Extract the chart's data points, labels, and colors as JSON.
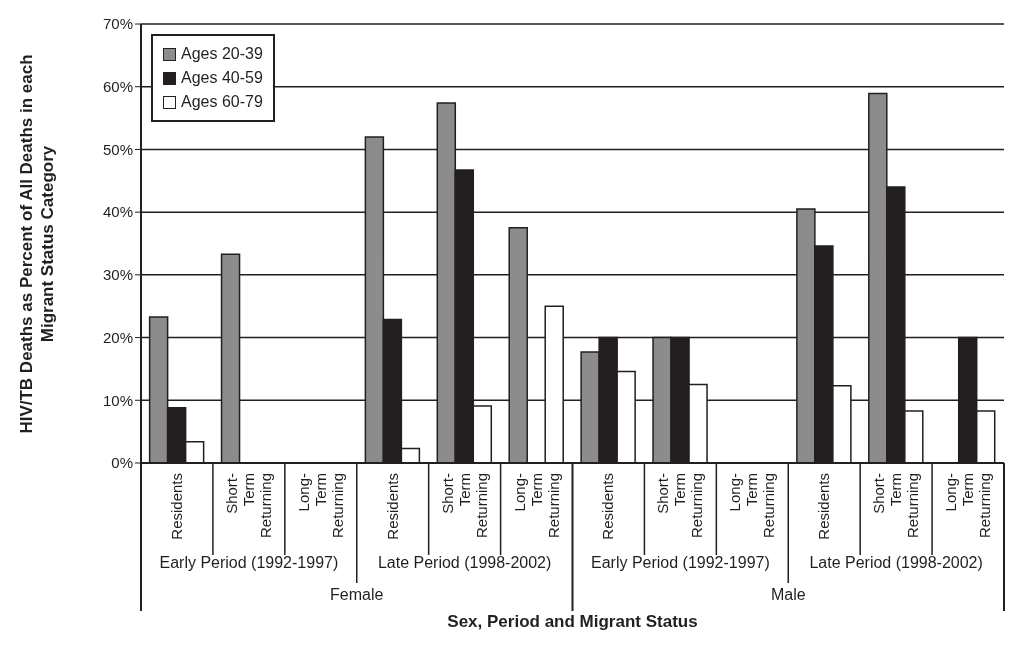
{
  "chart_data": {
    "type": "bar",
    "xlabel": "Sex, Period and Migrant Status",
    "ylabel": "HIV/TB Deaths as Percent of All Deaths in each Migrant Status Category",
    "categories": [
      "Residents",
      "Short-Term Returning",
      "Long-Term Returning",
      "Residents",
      "Short-Term Returning",
      "Long-Term Returning",
      "Residents",
      "Short-Term Returning",
      "Long-Term Returning",
      "Residents",
      "Short-Term Returning",
      "Long-Term Returning"
    ],
    "series": [
      {
        "name": "Ages 20-39",
        "color": "#8c8c8c",
        "values": [
          23.3,
          33.3,
          0,
          52.0,
          57.4,
          37.5,
          17.7,
          20,
          0,
          40.5,
          58.9,
          0
        ]
      },
      {
        "name": "Ages 40-59",
        "color": "#231f20",
        "values": [
          8.8,
          0,
          0,
          22.9,
          46.7,
          0,
          20,
          20,
          0,
          34.6,
          44.0,
          20
        ]
      },
      {
        "name": "Ages 60-79",
        "color": "#ffffff",
        "values": [
          3.4,
          0,
          0,
          2.3,
          9.1,
          25.0,
          14.6,
          12.5,
          0,
          12.3,
          8.3,
          8.3
        ]
      }
    ],
    "annotations": [
      "Early Period (1992-1997)",
      "Late Period (1998-2002)",
      "Early Period (1992-1997)",
      "Late Period (1998-2002)",
      "Female",
      "Male"
    ],
    "ylim": [
      0,
      70
    ],
    "yticks": [
      {
        "value": 0,
        "label": "0%"
      },
      {
        "value": 10,
        "label": "10%"
      },
      {
        "value": 20,
        "label": "20%"
      },
      {
        "value": 30,
        "label": "30%"
      },
      {
        "value": 40,
        "label": "40%"
      },
      {
        "value": 50,
        "label": "50%"
      },
      {
        "value": 60,
        "label": "60%"
      },
      {
        "value": 70,
        "label": "70%"
      }
    ],
    "grid": "y",
    "legend": "top left"
  }
}
